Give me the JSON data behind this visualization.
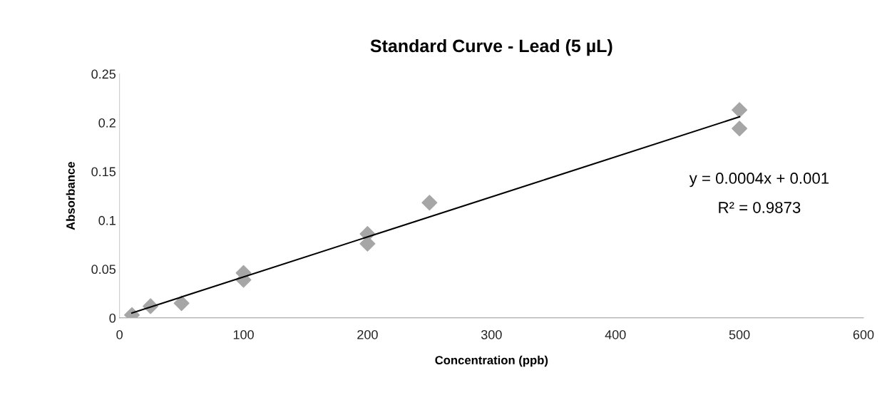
{
  "chart_data": {
    "type": "scatter",
    "title": "Standard Curve - Lead (5 µL)",
    "xlabel": "Concentration (ppb)",
    "ylabel": "Absorbance",
    "series": [
      {
        "color": "#a6a6a6",
        "marker": "diamond",
        "x": [
          10,
          25,
          50,
          100,
          100,
          200,
          200,
          250,
          500,
          500
        ],
        "values": [
          0.003,
          0.012,
          0.015,
          0.046,
          0.039,
          0.086,
          0.076,
          0.118,
          0.213,
          0.194
        ]
      },
      {
        "type": "line",
        "color": "#000000",
        "marker": "none",
        "x": [
          10,
          500
        ],
        "values": [
          0.005,
          0.206
        ]
      }
    ],
    "xlim": [
      0,
      600
    ],
    "xticks": [
      0,
      100,
      200,
      300,
      400,
      500,
      600
    ],
    "ylim": [
      0,
      0.25
    ],
    "yticks": [
      0,
      0.05,
      0.1,
      0.15,
      0.2,
      0.25
    ],
    "grid": false,
    "legend": false,
    "annotations": [
      "y = 0.0004x + 0.001",
      "R² = 0.9873"
    ]
  }
}
